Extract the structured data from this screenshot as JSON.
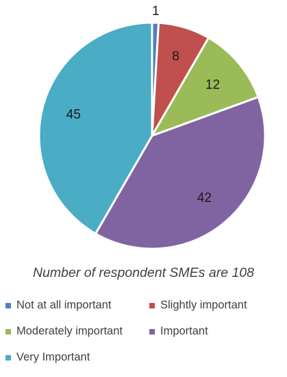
{
  "chart_data": {
    "type": "pie",
    "title": "",
    "subtitle": "Number of respondent SMEs are 108",
    "categories": [
      "Not at all important",
      "Slightly important",
      "Moderately important",
      "Important",
      "Very Important"
    ],
    "values": [
      1,
      8,
      12,
      42,
      45
    ],
    "colors": [
      "#4f81bd",
      "#c0504d",
      "#9bbb59",
      "#8064a2",
      "#4bacc6"
    ],
    "start_angle_deg": 0,
    "direction": "clockwise",
    "data_labels": [
      "1",
      "8",
      "12",
      "42",
      "45"
    ],
    "legend_position": "bottom"
  }
}
